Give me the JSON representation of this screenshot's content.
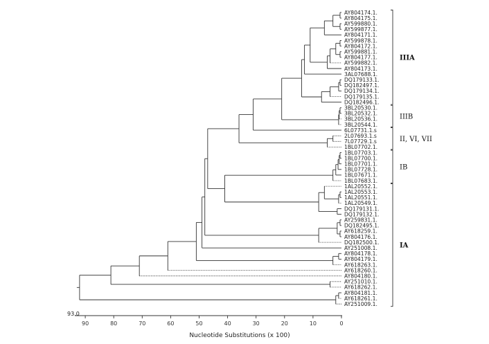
{
  "tree": {
    "x_axis": {
      "title": "Nucleotide Substitutions (x 100)",
      "ticks": [
        "90",
        "80",
        "70",
        "60",
        "50",
        "40",
        "30",
        "20",
        "10",
        "0"
      ],
      "values": [
        90,
        80,
        70,
        60,
        50,
        40,
        30,
        20,
        10,
        0
      ],
      "range": [
        93,
        0
      ],
      "direction": "reversed"
    },
    "root_value_label": "93.0",
    "taxa": [
      "AY804174.1.",
      "AY804175.1.",
      "AY599880.1.",
      "AY599877.1.",
      "AY804171.1.",
      "AY599878.1.",
      "AY804172.1.",
      "AY599881.1.",
      "AY804177.1.",
      "AY599882.1.",
      "AY804173.1.",
      "3AL07688.1.",
      "DQ179133.1.",
      "DQ182497.1.",
      "DQ179134.1.",
      "DQ179135.1.",
      "DQ182496.1.",
      "3BL20530.1.",
      "3BL20532.1.",
      "3BL20536.1.",
      "3BL20544.1.",
      "6L07731.1.s",
      "2L07693.1.s",
      "7L07729.1.s",
      "1BL07702.1.",
      "1BL07703.1.",
      "1BL07700.1.",
      "1BL07701.1.",
      "1BL07728.1.",
      "1BL07671.1.",
      "1BL07683.1.",
      "1AL20552.1.",
      "1AL20553.1.",
      "1AL20551.1.",
      "1AL20549.1.",
      "DQ179131.1.",
      "DQ179132.1.",
      "AY259831.1.",
      "DQ182495.1.",
      "AY618259.1.",
      "AY804176.1.",
      "DQ182500.1.",
      "AY251008.1.",
      "AY804178.1.",
      "AY804179.1.",
      "AY618263.1.",
      "AY618260.1.",
      "AY804180.1.",
      "AY251010.1.",
      "AY618262.1.",
      "AY804181.1.",
      "AY618261.1.",
      "AY251009.1."
    ],
    "clades": [
      {
        "label": "IIIA",
        "first": 0,
        "last": 16,
        "bold": true
      },
      {
        "label": "IIIB",
        "first": 17,
        "last": 20,
        "bold": false
      },
      {
        "label": "II, VI, VII",
        "first": 21,
        "last": 24,
        "bold": false
      },
      {
        "label": "IB",
        "first": 25,
        "last": 30,
        "bold": false
      },
      {
        "label": "IA",
        "first": 31,
        "last": 52,
        "bold": true
      }
    ],
    "nodes": [
      {
        "members": [
          0,
          1
        ],
        "height": 0.5
      },
      {
        "members": [
          2,
          3
        ],
        "height": 0.5
      },
      {
        "members": [
          "n0",
          "n1"
        ],
        "height": 3
      },
      {
        "members": [
          "n2",
          4
        ],
        "height": 6
      },
      {
        "members": [
          5,
          6
        ],
        "height": 0.5
      },
      {
        "members": [
          7,
          8
        ],
        "height": 0.5
      },
      {
        "members": [
          "n4",
          "n5"
        ],
        "height": 2
      },
      {
        "members": [
          "n6",
          9
        ],
        "height": 4
      },
      {
        "members": [
          "n7",
          10
        ],
        "height": 5
      },
      {
        "members": [
          "n3",
          "n8"
        ],
        "height": 11
      },
      {
        "members": [
          "n9",
          11
        ],
        "height": 13
      },
      {
        "members": [
          12,
          13
        ],
        "height": 0.5
      },
      {
        "members": [
          "n11",
          14
        ],
        "height": 1
      },
      {
        "members": [
          "n12",
          15
        ],
        "height": 4
      },
      {
        "members": [
          "n13",
          16
        ],
        "height": 7
      },
      {
        "members": [
          "n10",
          "n14"
        ],
        "height": 14
      },
      {
        "members": [
          17,
          18
        ],
        "height": 0.5
      },
      {
        "members": [
          "n16",
          19
        ],
        "height": 0.8
      },
      {
        "members": [
          "n17",
          20
        ],
        "height": 1
      },
      {
        "members": [
          "n15",
          "n18"
        ],
        "height": 21
      },
      {
        "members": [
          "n19",
          21
        ],
        "height": 31
      },
      {
        "members": [
          22,
          23
        ],
        "height": 3
      },
      {
        "members": [
          "n21",
          24
        ],
        "height": 5
      },
      {
        "members": [
          "n20",
          "n22"
        ],
        "height": 36
      },
      {
        "members": [
          25,
          26
        ],
        "height": 0.5
      },
      {
        "members": [
          "n24",
          27
        ],
        "height": 0.8
      },
      {
        "members": [
          "n25",
          28
        ],
        "height": 1.2
      },
      {
        "members": [
          "n26",
          29
        ],
        "height": 2
      },
      {
        "members": [
          "n27",
          30
        ],
        "height": 3
      },
      {
        "members": [
          32,
          33
        ],
        "height": 0.5
      },
      {
        "members": [
          "n29",
          34
        ],
        "height": 1
      },
      {
        "members": [
          "n30",
          31
        ],
        "height": 6
      },
      {
        "members": [
          35,
          36
        ],
        "height": 1.5
      },
      {
        "members": [
          "n31",
          "n32"
        ],
        "height": 8
      },
      {
        "members": [
          "n28",
          "n33"
        ],
        "height": 41
      },
      {
        "members": [
          "n23",
          "n34"
        ],
        "height": 47
      },
      {
        "members": [
          37,
          38
        ],
        "height": 0.5
      },
      {
        "members": [
          39,
          40
        ],
        "height": 0.5
      },
      {
        "members": [
          "n36",
          "n37"
        ],
        "height": 1.5
      },
      {
        "members": [
          "n38",
          41
        ],
        "height": 8
      },
      {
        "members": [
          "n35",
          "n39"
        ],
        "height": 48
      },
      {
        "members": [
          "n40",
          42
        ],
        "height": 49
      },
      {
        "members": [
          43,
          44
        ],
        "height": 1
      },
      {
        "members": [
          "n42",
          45
        ],
        "height": 3
      },
      {
        "members": [
          "n41",
          "n43"
        ],
        "height": 51
      },
      {
        "members": [
          "n44",
          46
        ],
        "height": 61
      },
      {
        "members": [
          "n45",
          47
        ],
        "height": 71
      },
      {
        "members": [
          48,
          49
        ],
        "height": 4
      },
      {
        "members": [
          "n46",
          "n47"
        ],
        "height": 81
      },
      {
        "members": [
          50,
          51
        ],
        "height": 1
      },
      {
        "members": [
          "n49",
          52
        ],
        "height": 2
      },
      {
        "members": [
          "n48",
          "n50"
        ],
        "height": 92
      }
    ],
    "dotted_taxa": [
      9,
      15,
      19,
      20,
      22,
      23,
      24,
      30,
      31,
      34,
      41,
      45,
      46,
      47,
      48,
      49,
      51,
      52
    ]
  }
}
